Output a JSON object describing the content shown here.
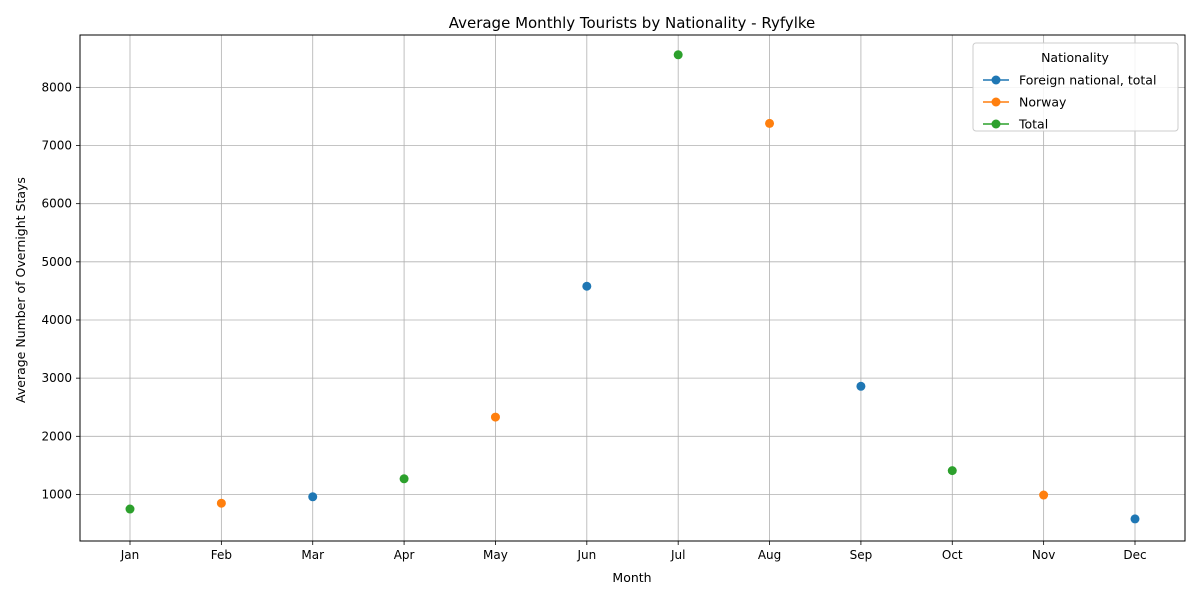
{
  "chart_data": {
    "type": "scatter",
    "title": "Average Monthly Tourists by Nationality - Ryfylke",
    "xlabel": "Month",
    "ylabel": "Average Number of Overnight Stays",
    "categories": [
      "Jan",
      "Feb",
      "Mar",
      "Apr",
      "May",
      "Jun",
      "Jul",
      "Aug",
      "Sep",
      "Oct",
      "Nov",
      "Dec"
    ],
    "ylim": [
      200,
      8900
    ],
    "yticks": [
      1000,
      2000,
      3000,
      4000,
      5000,
      6000,
      7000,
      8000
    ],
    "grid": true,
    "legend": {
      "title": "Nationality",
      "position": "top-right"
    },
    "series": [
      {
        "name": "Foreign national, total",
        "color": "#1f77b4",
        "points": [
          {
            "x": "Mar",
            "y": 960
          },
          {
            "x": "Jun",
            "y": 4580
          },
          {
            "x": "Sep",
            "y": 2860
          },
          {
            "x": "Dec",
            "y": 580
          }
        ]
      },
      {
        "name": "Norway",
        "color": "#ff7f0e",
        "points": [
          {
            "x": "Feb",
            "y": 850
          },
          {
            "x": "May",
            "y": 2330
          },
          {
            "x": "Aug",
            "y": 7380
          },
          {
            "x": "Nov",
            "y": 990
          }
        ]
      },
      {
        "name": "Total",
        "color": "#2ca02c",
        "points": [
          {
            "x": "Jan",
            "y": 750
          },
          {
            "x": "Apr",
            "y": 1270
          },
          {
            "x": "Jul",
            "y": 8560
          },
          {
            "x": "Oct",
            "y": 1410
          }
        ]
      }
    ]
  }
}
